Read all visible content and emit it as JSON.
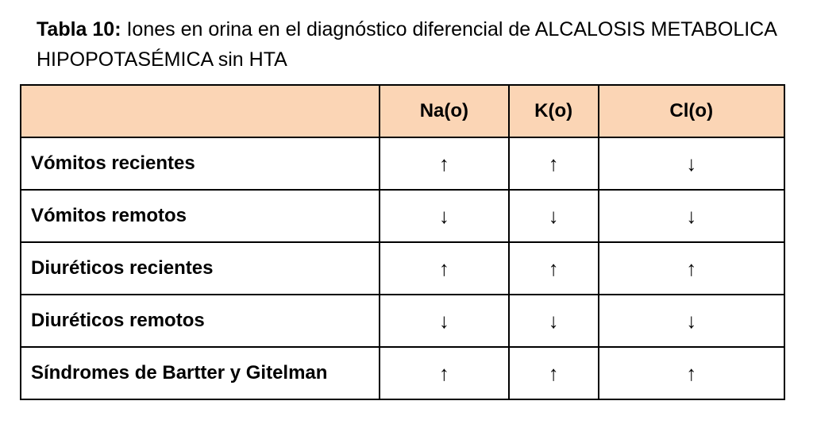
{
  "title": {
    "bold": "Tabla 10:",
    "text": " Iones en orina en el diagnóstico diferencial de ALCALOSIS METABOLICA HIPOPOTASÉMICA sin HTA"
  },
  "header_color": "#fbd5b5",
  "columns": [
    "",
    "Na(o)",
    "K(o)",
    "Cl(o)"
  ],
  "rows": [
    {
      "label": "Vómitos recientes",
      "values": [
        "↑",
        "↑",
        "↓"
      ]
    },
    {
      "label": "Vómitos remotos",
      "values": [
        "↓",
        "↓",
        "↓"
      ]
    },
    {
      "label": "Diuréticos recientes",
      "values": [
        "↑",
        "↑",
        "↑"
      ]
    },
    {
      "label": "Diuréticos remotos",
      "values": [
        "↓",
        "↓",
        "↓"
      ]
    },
    {
      "label": "Síndromes de Bartter y Gitelman",
      "values": [
        "↑",
        "↑",
        "↑"
      ]
    }
  ]
}
